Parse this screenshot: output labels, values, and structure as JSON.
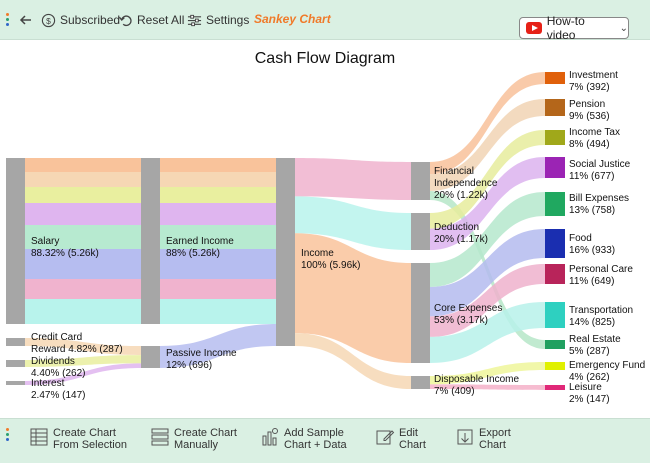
{
  "toolbar": {
    "subscribed": "Subscribed",
    "reset": "Reset All",
    "settings": "Settings",
    "brand": "Sankey Chart",
    "howto": "How-to video"
  },
  "bottom": {
    "from_selection": [
      "Create Chart",
      "From Selection"
    ],
    "manually": [
      "Create Chart",
      "Manually"
    ],
    "sample": [
      "Add Sample",
      "Chart + Data"
    ],
    "edit": [
      "Edit",
      "Chart"
    ],
    "export": [
      "Export",
      "Chart"
    ]
  },
  "colors": {
    "accent": "#f07a2a",
    "bar_bg": "#daf0e3",
    "node": "#a6a6a6",
    "youtube": "#e62117"
  },
  "chart_data": {
    "type": "sankey",
    "title": "Cash Flow Diagram",
    "nodes": [
      {
        "id": "salary",
        "label": "Salary",
        "sub": "88.32% (5.26k)"
      },
      {
        "id": "credit",
        "label": "Credit Card Reward",
        "sub": "4.82% (287)"
      },
      {
        "id": "dividends",
        "label": "Dividends",
        "sub": "4.40% (262)"
      },
      {
        "id": "interest",
        "label": "Interest",
        "sub": "2.47% (147)"
      },
      {
        "id": "earned",
        "label": "Earned Income",
        "sub": "88% (5.26k)"
      },
      {
        "id": "passive",
        "label": "Passive Income",
        "sub": "12% (696)"
      },
      {
        "id": "income",
        "label": "Income",
        "sub": "100% (5.96k)"
      },
      {
        "id": "financial",
        "label": "Financial Independence",
        "sub": "20% (1.22k)"
      },
      {
        "id": "deduction",
        "label": "Deduction",
        "sub": "20% (1.17k)"
      },
      {
        "id": "core",
        "label": "Core Expenses",
        "sub": "53% (3.17k)"
      },
      {
        "id": "disposable",
        "label": "Disposable Income",
        "sub": "7% (409)"
      },
      {
        "id": "investment",
        "label": "Investment",
        "sub": "7% (392)",
        "color": "#e0600a"
      },
      {
        "id": "pension",
        "label": "Pension",
        "sub": "9% (536)",
        "color": "#b4661a"
      },
      {
        "id": "incometax",
        "label": "Income Tax",
        "sub": "8% (494)",
        "color": "#a0a81a"
      },
      {
        "id": "social",
        "label": "Social Justice",
        "sub": "11% (677)",
        "color": "#9b24b4"
      },
      {
        "id": "bills",
        "label": "Bill Expenses",
        "sub": "13% (758)",
        "color": "#20a860"
      },
      {
        "id": "food",
        "label": "Food",
        "sub": "16% (933)",
        "color": "#1a2eb0"
      },
      {
        "id": "personal",
        "label": "Personal Care",
        "sub": "11% (649)",
        "color": "#b8245a"
      },
      {
        "id": "transport",
        "label": "Transportation",
        "sub": "14% (825)",
        "color": "#2ed0c0"
      },
      {
        "id": "realestate",
        "label": "Real Estate",
        "sub": "5% (287)",
        "color": "#20a060"
      },
      {
        "id": "emergency",
        "label": "Emergency Fund",
        "sub": "4% (262)",
        "color": "#e0f000"
      },
      {
        "id": "leisure",
        "label": "Leisure",
        "sub": "2% (147)",
        "color": "#e02878"
      }
    ],
    "links": [
      {
        "source": "salary",
        "target": "earned",
        "value": 5260
      },
      {
        "source": "credit",
        "target": "passive",
        "value": 287
      },
      {
        "source": "dividends",
        "target": "passive",
        "value": 262
      },
      {
        "source": "interest",
        "target": "passive",
        "value": 147
      },
      {
        "source": "earned",
        "target": "income",
        "value": 5260
      },
      {
        "source": "passive",
        "target": "income",
        "value": 696
      },
      {
        "source": "income",
        "target": "financial",
        "value": 1220
      },
      {
        "source": "income",
        "target": "deduction",
        "value": 1170
      },
      {
        "source": "income",
        "target": "core",
        "value": 3170
      },
      {
        "source": "income",
        "target": "disposable",
        "value": 409
      },
      {
        "source": "financial",
        "target": "investment",
        "value": 392
      },
      {
        "source": "financial",
        "target": "pension",
        "value": 536
      },
      {
        "source": "financial",
        "target": "realestate",
        "value": 287
      },
      {
        "source": "deduction",
        "target": "incometax",
        "value": 494
      },
      {
        "source": "deduction",
        "target": "social",
        "value": 677
      },
      {
        "source": "core",
        "target": "bills",
        "value": 758
      },
      {
        "source": "core",
        "target": "food",
        "value": 933
      },
      {
        "source": "core",
        "target": "personal",
        "value": 649
      },
      {
        "source": "core",
        "target": "transport",
        "value": 825
      },
      {
        "source": "disposable",
        "target": "emergency",
        "value": 262
      },
      {
        "source": "disposable",
        "target": "leisure",
        "value": 147
      }
    ]
  }
}
